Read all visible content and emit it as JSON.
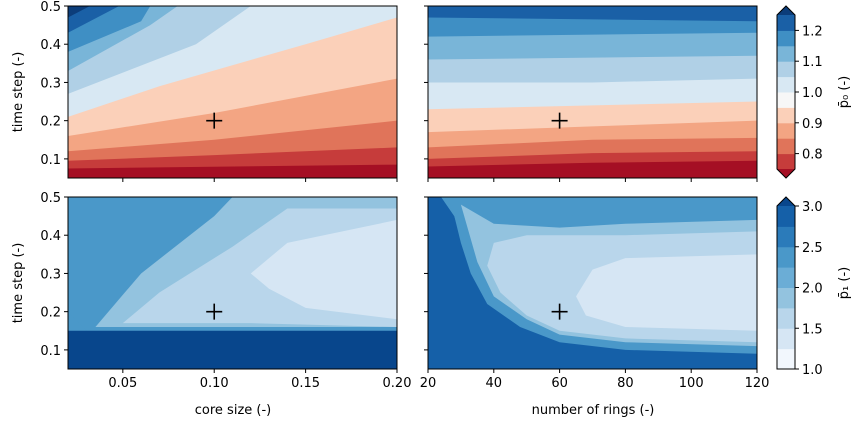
{
  "chart_data": [
    {
      "type": "contour",
      "panel": "top-left",
      "xlabel": "",
      "ylabel": "time step (-)",
      "xlim": [
        0.02,
        0.2
      ],
      "ylim": [
        0.05,
        0.5
      ],
      "marker": {
        "x": 0.1,
        "y": 0.2,
        "symbol": "+"
      },
      "colormap": "RdBu",
      "levels": [
        0.75,
        0.8,
        0.85,
        0.9,
        0.95,
        1.0,
        1.05,
        1.1,
        1.15,
        1.2,
        1.25
      ],
      "boundaries": [
        {
          "level": 1.25,
          "points": [
            [
              0.02,
              0.47
            ],
            [
              0.032,
              0.5
            ]
          ]
        },
        {
          "level": 1.2,
          "points": [
            [
              0.02,
              0.43
            ],
            [
              0.048,
              0.5
            ]
          ]
        },
        {
          "level": 1.15,
          "points": [
            [
              0.02,
              0.38
            ],
            [
              0.06,
              0.46
            ],
            [
              0.065,
              0.5
            ]
          ]
        },
        {
          "level": 1.1,
          "points": [
            [
              0.02,
              0.33
            ],
            [
              0.065,
              0.45
            ],
            [
              0.08,
              0.5
            ]
          ]
        },
        {
          "level": 1.05,
          "points": [
            [
              0.02,
              0.27
            ],
            [
              0.09,
              0.4
            ],
            [
              0.12,
              0.5
            ]
          ]
        },
        {
          "level": 1.0,
          "points": [
            [
              0.02,
              0.21
            ],
            [
              0.07,
              0.29
            ],
            [
              0.15,
              0.4
            ],
            [
              0.2,
              0.47
            ]
          ]
        },
        {
          "level": 0.95,
          "points": [
            [
              0.02,
              0.16
            ],
            [
              0.1,
              0.22
            ],
            [
              0.2,
              0.31
            ]
          ]
        },
        {
          "level": 0.9,
          "points": [
            [
              0.02,
              0.12
            ],
            [
              0.1,
              0.15
            ],
            [
              0.2,
              0.2
            ]
          ]
        },
        {
          "level": 0.85,
          "points": [
            [
              0.02,
              0.095
            ],
            [
              0.1,
              0.11
            ],
            [
              0.2,
              0.13
            ]
          ]
        },
        {
          "level": 0.8,
          "points": [
            [
              0.02,
              0.075
            ],
            [
              0.2,
              0.085
            ]
          ]
        },
        {
          "level": 0.75,
          "points": [
            [
              0.02,
              0.06
            ],
            [
              0.2,
              0.065
            ]
          ]
        }
      ],
      "xticks": [
        "0.05",
        "0.10",
        "0.15",
        "0.20"
      ],
      "yticks": [
        "0.1",
        "0.2",
        "0.3",
        "0.4",
        "0.5"
      ]
    },
    {
      "type": "contour",
      "panel": "top-right",
      "xlabel": "",
      "ylabel": "",
      "xlim": [
        20,
        120
      ],
      "ylim": [
        0.05,
        0.5
      ],
      "marker": {
        "x": 60,
        "y": 0.2,
        "symbol": "+"
      },
      "colormap": "RdBu",
      "levels": [
        0.75,
        0.8,
        0.85,
        0.9,
        0.95,
        1.0,
        1.05,
        1.1,
        1.15,
        1.2,
        1.25
      ],
      "boundaries": [
        {
          "level": 1.2,
          "points": [
            [
              20,
              0.47
            ],
            [
              120,
              0.46
            ]
          ]
        },
        {
          "level": 1.15,
          "points": [
            [
              20,
              0.42
            ],
            [
              120,
              0.43
            ]
          ]
        },
        {
          "level": 1.1,
          "points": [
            [
              20,
              0.36
            ],
            [
              120,
              0.37
            ]
          ]
        },
        {
          "level": 1.05,
          "points": [
            [
              20,
              0.3
            ],
            [
              70,
              0.3
            ],
            [
              120,
              0.31
            ]
          ]
        },
        {
          "level": 1.0,
          "points": [
            [
              20,
              0.23
            ],
            [
              70,
              0.24
            ],
            [
              120,
              0.25
            ]
          ]
        },
        {
          "level": 0.95,
          "points": [
            [
              20,
              0.17
            ],
            [
              70,
              0.185
            ],
            [
              120,
              0.2
            ]
          ]
        },
        {
          "level": 0.9,
          "points": [
            [
              20,
              0.13
            ],
            [
              70,
              0.15
            ],
            [
              120,
              0.155
            ]
          ]
        },
        {
          "level": 0.85,
          "points": [
            [
              20,
              0.1
            ],
            [
              70,
              0.115
            ],
            [
              120,
              0.12
            ]
          ]
        },
        {
          "level": 0.8,
          "points": [
            [
              20,
              0.08
            ],
            [
              70,
              0.09
            ],
            [
              120,
              0.095
            ]
          ]
        },
        {
          "level": 0.75,
          "points": [
            [
              20,
              0.06
            ],
            [
              70,
              0.068
            ],
            [
              120,
              0.07
            ]
          ]
        }
      ],
      "xticks": [
        "20",
        "40",
        "60",
        "80",
        "100",
        "120"
      ],
      "yticks": [
        "0.1",
        "0.2",
        "0.3",
        "0.4",
        "0.5"
      ]
    },
    {
      "type": "contour",
      "panel": "bottom-left",
      "xlabel": "core size (-)",
      "ylabel": "time step (-)",
      "xlim": [
        0.02,
        0.2
      ],
      "ylim": [
        0.05,
        0.5
      ],
      "marker": {
        "x": 0.1,
        "y": 0.2,
        "symbol": "+"
      },
      "colormap": "Blues",
      "levels": [
        1.25,
        1.5,
        1.75,
        2.0,
        2.25,
        2.5,
        2.75,
        3.0
      ],
      "regions": [
        {
          "level": 3.0,
          "points": [
            [
              0.02,
              0.05
            ],
            [
              0.2,
              0.05
            ],
            [
              0.2,
              0.15
            ],
            [
              0.02,
              0.15
            ]
          ]
        },
        {
          "level": 2.75,
          "points": [
            [
              0.02,
              0.4
            ],
            [
              0.04,
              0.5
            ],
            [
              0.02,
              0.5
            ]
          ]
        },
        {
          "level": 2.5,
          "points": [
            [
              0.02,
              0.3
            ],
            [
              0.05,
              0.45
            ],
            [
              0.06,
              0.5
            ],
            [
              0.02,
              0.5
            ]
          ]
        },
        {
          "level": 2.25,
          "points": [
            [
              0.02,
              0.2
            ],
            [
              0.03,
              0.15
            ],
            [
              0.2,
              0.15
            ],
            [
              0.2,
              0.5
            ],
            [
              0.02,
              0.5
            ]
          ]
        },
        {
          "level": 2.0,
          "points": [
            [
              0.035,
              0.16
            ],
            [
              0.06,
              0.3
            ],
            [
              0.1,
              0.45
            ],
            [
              0.11,
              0.5
            ],
            [
              0.2,
              0.5
            ],
            [
              0.2,
              0.16
            ]
          ]
        },
        {
          "level": 1.75,
          "points": [
            [
              0.05,
              0.17
            ],
            [
              0.07,
              0.25
            ],
            [
              0.11,
              0.37
            ],
            [
              0.14,
              0.47
            ],
            [
              0.2,
              0.47
            ],
            [
              0.2,
              0.16
            ],
            [
              0.12,
              0.17
            ]
          ]
        },
        {
          "level": 1.5,
          "points": [
            [
              0.12,
              0.3
            ],
            [
              0.14,
              0.38
            ],
            [
              0.2,
              0.44
            ],
            [
              0.2,
              0.18
            ],
            [
              0.15,
              0.21
            ],
            [
              0.13,
              0.26
            ]
          ]
        }
      ],
      "xticks": [
        "0.05",
        "0.10",
        "0.15",
        "0.20"
      ],
      "yticks": [
        "0.1",
        "0.2",
        "0.3",
        "0.4",
        "0.5"
      ]
    },
    {
      "type": "contour",
      "panel": "bottom-right",
      "xlabel": "number of rings (-)",
      "ylabel": "",
      "xlim": [
        20,
        120
      ],
      "ylim": [
        0.05,
        0.5
      ],
      "marker": {
        "x": 60,
        "y": 0.2,
        "symbol": "+"
      },
      "colormap": "Blues",
      "levels": [
        1.25,
        1.5,
        1.75,
        2.0,
        2.25,
        2.5,
        2.75,
        3.0
      ],
      "regions": [
        {
          "level": 2.75,
          "points": [
            [
              20,
              0.5
            ],
            [
              24,
              0.5
            ],
            [
              28,
              0.45
            ],
            [
              30,
              0.38
            ],
            [
              33,
              0.3
            ],
            [
              38,
              0.22
            ],
            [
              48,
              0.16
            ],
            [
              60,
              0.12
            ],
            [
              80,
              0.1
            ],
            [
              120,
              0.09
            ],
            [
              120,
              0.05
            ],
            [
              20,
              0.05
            ]
          ]
        },
        {
          "level": 2.25,
          "points": [
            [
              24,
              0.5
            ],
            [
              30,
              0.46
            ],
            [
              40,
              0.44
            ],
            [
              60,
              0.45
            ],
            [
              120,
              0.47
            ],
            [
              120,
              0.1
            ],
            [
              80,
              0.11
            ],
            [
              60,
              0.13
            ],
            [
              48,
              0.17
            ],
            [
              38,
              0.23
            ],
            [
              33,
              0.31
            ],
            [
              28,
              0.45
            ]
          ]
        },
        {
          "level": 2.0,
          "points": [
            [
              30,
              0.48
            ],
            [
              40,
              0.43
            ],
            [
              60,
              0.42
            ],
            [
              80,
              0.43
            ],
            [
              120,
              0.44
            ],
            [
              120,
              0.11
            ],
            [
              80,
              0.12
            ],
            [
              60,
              0.14
            ],
            [
              50,
              0.18
            ],
            [
              40,
              0.24
            ],
            [
              35,
              0.33
            ]
          ]
        },
        {
          "level": 1.75,
          "points": [
            [
              40,
              0.38
            ],
            [
              50,
              0.4
            ],
            [
              80,
              0.4
            ],
            [
              120,
              0.41
            ],
            [
              120,
              0.12
            ],
            [
              80,
              0.13
            ],
            [
              60,
              0.15
            ],
            [
              50,
              0.19
            ],
            [
              42,
              0.25
            ],
            [
              38,
              0.32
            ]
          ]
        },
        {
          "level": 1.5,
          "points": [
            [
              70,
              0.31
            ],
            [
              80,
              0.34
            ],
            [
              120,
              0.35
            ],
            [
              120,
              0.15
            ],
            [
              80,
              0.16
            ],
            [
              68,
              0.19
            ],
            [
              65,
              0.24
            ]
          ]
        }
      ],
      "xticks": [
        "20",
        "40",
        "60",
        "80",
        "100",
        "120"
      ],
      "yticks": [
        "0.1",
        "0.2",
        "0.3",
        "0.4",
        "0.5"
      ]
    }
  ],
  "colorbars": [
    {
      "label": "p̄₀ (-)",
      "range": [
        0.75,
        1.25
      ],
      "ticks": [
        "0.8",
        "0.9",
        "1.0",
        "1.1",
        "1.2"
      ],
      "tick_values": [
        0.8,
        0.9,
        1.0,
        1.1,
        1.2
      ],
      "extend": "both",
      "colors": [
        "#a50f24",
        "#c63c3b",
        "#e0745a",
        "#f3a583",
        "#fbd0b9",
        "#f7f7f7",
        "#d8e8f3",
        "#b0d0e6",
        "#79b5d8",
        "#3f8fc4",
        "#1a60a6",
        "#0c3d7a"
      ]
    },
    {
      "label": "p̄₁ (-)",
      "range": [
        1.0,
        3.0
      ],
      "ticks": [
        "1.0",
        "1.5",
        "2.0",
        "2.5",
        "3.0"
      ],
      "tick_values": [
        1.0,
        1.5,
        2.0,
        2.5,
        3.0
      ],
      "extend": "max",
      "colors": [
        "#f2f7fd",
        "#d6e6f4",
        "#b9d6eb",
        "#93c3df",
        "#6badd6",
        "#4a98c9",
        "#2b7bba",
        "#1560a8",
        "#08468c"
      ]
    }
  ],
  "palette": {
    "red_colors": [
      "#a50f24",
      "#c63c3b",
      "#e0745a",
      "#f3a583",
      "#fbd0b9",
      "#f7f7f7",
      "#d8e8f3",
      "#b0d0e6",
      "#79b5d8",
      "#3f8fc4",
      "#1a60a6",
      "#0c3d7a"
    ],
    "blue_colors": [
      "#f2f7fd",
      "#d6e6f4",
      "#b9d6eb",
      "#93c3df",
      "#6badd6",
      "#4a98c9",
      "#2b7bba",
      "#1560a8",
      "#08468c"
    ]
  }
}
